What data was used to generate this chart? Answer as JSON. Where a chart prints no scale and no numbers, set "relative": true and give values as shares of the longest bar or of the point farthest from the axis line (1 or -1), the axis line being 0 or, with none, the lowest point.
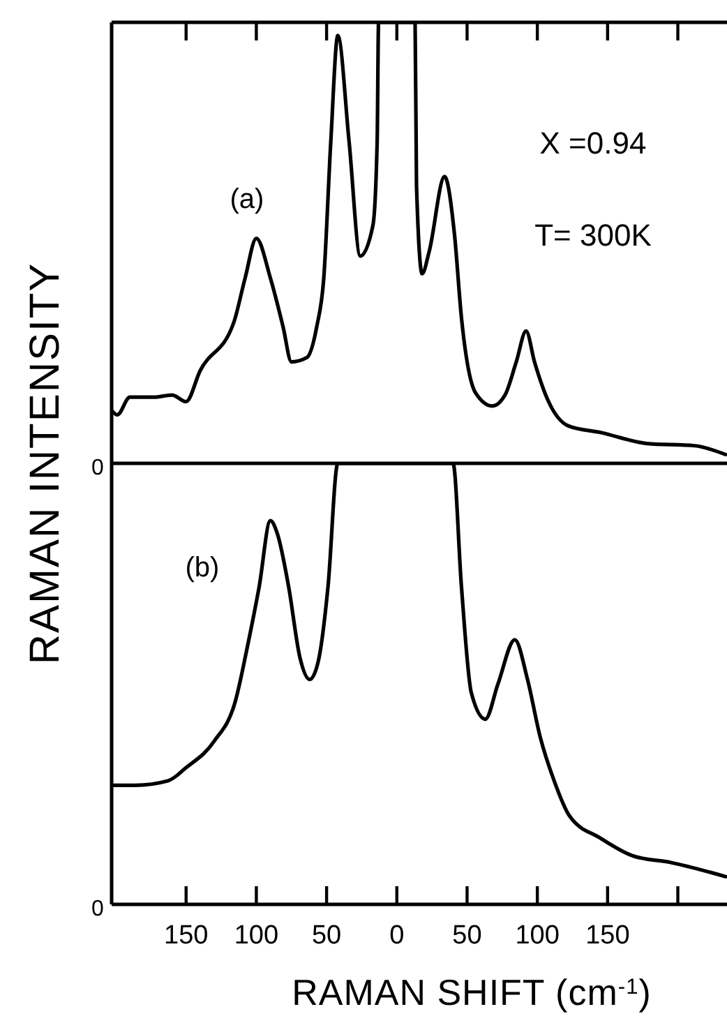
{
  "chart_data": [
    {
      "type": "line",
      "ylabel": "RAMAN INTENSITY",
      "relative": true,
      "tick_labels": false,
      "marker": "none",
      "line_style": "solid",
      "grid": false,
      "xlim": [
        -203,
        235
      ],
      "xticks": [
        -150,
        -100,
        -50,
        0,
        50,
        100,
        150,
        200
      ],
      "annotations": [
        "(a)",
        "X =0.94",
        "T= 300K",
        "0"
      ],
      "series": [
        {
          "color": "#000000",
          "x": [
            -203,
            -199,
            -190,
            -173,
            -160,
            -150,
            -140,
            -116,
            -108,
            -100,
            -90,
            -81,
            -75,
            -64,
            -57,
            -52,
            -47,
            -42,
            -34,
            -26,
            -17,
            -14,
            -13,
            13,
            14,
            18,
            23,
            34,
            41,
            46,
            56,
            68,
            77,
            85,
            92,
            98,
            108,
            122,
            145,
            178,
            212,
            234
          ],
          "values": [
            0.12,
            0.11,
            0.15,
            0.15,
            0.155,
            0.14,
            0.21,
            0.32,
            0.42,
            0.51,
            0.42,
            0.31,
            0.23,
            0.24,
            0.31,
            0.42,
            0.73,
            0.97,
            0.73,
            0.47,
            0.54,
            0.73,
            1.0,
            1.0,
            0.63,
            0.43,
            0.48,
            0.65,
            0.52,
            0.33,
            0.16,
            0.13,
            0.155,
            0.23,
            0.3,
            0.23,
            0.14,
            0.085,
            0.07,
            0.045,
            0.04,
            0.02
          ]
        }
      ]
    },
    {
      "type": "line",
      "xlabel": "RAMAN SHIFT (cm$^{-1}$)",
      "relative": true,
      "tick_labels": "x",
      "marker": "none",
      "line_style": "solid",
      "grid": false,
      "xlim": [
        -203,
        235
      ],
      "xticks": [
        {
          "value": -150,
          "label": "150"
        },
        {
          "value": -100,
          "label": "100"
        },
        {
          "value": -50,
          "label": "50"
        },
        0,
        50,
        100,
        150,
        {
          "value": 200,
          "label": null
        }
      ],
      "annotations": [
        "(b)",
        "0"
      ],
      "series": [
        {
          "color": "#000000",
          "x": [
            -203,
            -186,
            -163,
            -150,
            -130,
            -115,
            -106,
            -98,
            -90,
            -85,
            -77,
            -69,
            -62,
            -56,
            -49,
            -42,
            40,
            46,
            53,
            63,
            72,
            84,
            93,
            102,
            112,
            123,
            145,
            168,
            195,
            234
          ],
          "values": [
            0.27,
            0.27,
            0.28,
            0.31,
            0.37,
            0.46,
            0.59,
            0.72,
            0.87,
            0.84,
            0.72,
            0.56,
            0.51,
            0.55,
            0.72,
            1.0,
            1.0,
            0.72,
            0.48,
            0.42,
            0.5,
            0.6,
            0.51,
            0.38,
            0.28,
            0.2,
            0.15,
            0.11,
            0.095,
            0.063
          ]
        }
      ]
    }
  ]
}
